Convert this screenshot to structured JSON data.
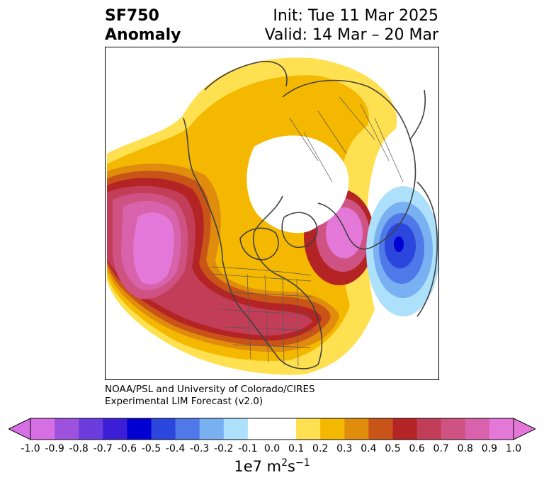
{
  "title": {
    "variable": "SF750",
    "kind": "Anomaly",
    "init": "Init: Tue 11 Mar 2025",
    "valid": "Valid: 14 Mar – 20 Mar"
  },
  "credit": {
    "line1": "NOAA/PSL and University of Colorado/CIRES",
    "line2": "Experimental LIM Forecast (v2.0)"
  },
  "colorbar": {
    "ticks": [
      "-1.0",
      "-0.9",
      "-0.8",
      "-0.7",
      "-0.6",
      "-0.5",
      "-0.4",
      "-0.3",
      "-0.2",
      "-0.1",
      "0.0",
      "0.1",
      "0.2",
      "0.3",
      "0.4",
      "0.5",
      "0.6",
      "0.7",
      "0.8",
      "0.9",
      "1.0"
    ],
    "colors": [
      "#d66ee4",
      "#9d52de",
      "#6c3cdc",
      "#3b1ed6",
      "#0000d2",
      "#2a46dc",
      "#4f78e8",
      "#78b0f2",
      "#ade0fa",
      "#ffffff",
      "#ffffff",
      "#ffe050",
      "#f5b800",
      "#e08c0c",
      "#c85418",
      "#b42424",
      "#c23e58",
      "#ce5282",
      "#d862ac",
      "#e478d8"
    ],
    "unit_base": "1e7 m",
    "unit_exp1": "2",
    "unit_mid": "s",
    "unit_exp2": "−1"
  }
}
